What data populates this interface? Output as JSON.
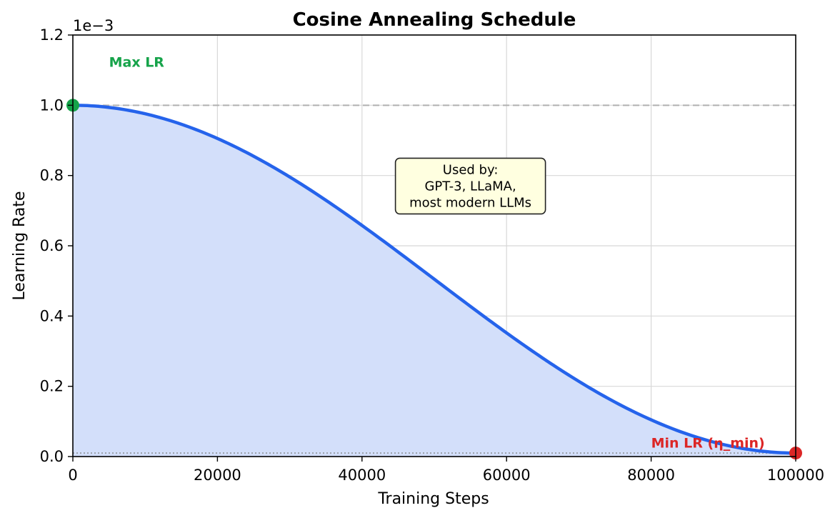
{
  "chart_data": {
    "type": "line",
    "title": "Cosine Annealing Schedule",
    "xlabel": "Training Steps",
    "ylabel": "Learning Rate",
    "y_offset_label": "1e−3",
    "xlim": [
      0,
      100000
    ],
    "ylim": [
      0,
      0.0012
    ],
    "x_ticks": [
      0,
      20000,
      40000,
      60000,
      80000,
      100000
    ],
    "x_tick_labels": [
      "0",
      "20000",
      "40000",
      "60000",
      "80000",
      "100000"
    ],
    "y_ticks": [
      0,
      0.0002,
      0.0004,
      0.0006,
      0.0008,
      0.001,
      0.0012
    ],
    "y_tick_labels": [
      "0.0",
      "0.2",
      "0.4",
      "0.6",
      "0.8",
      "1.0",
      "1.2"
    ],
    "grid": true,
    "series": [
      {
        "color": "#2563eb",
        "fill_color": "#d3dffa",
        "x": [
          0,
          5000,
          10000,
          15000,
          20000,
          25000,
          30000,
          35000,
          40000,
          45000,
          50000,
          55000,
          60000,
          65000,
          70000,
          75000,
          80000,
          85000,
          90000,
          95000,
          100000
        ],
        "y": [
          0.001,
          0.000994,
          0.000976,
          0.000946,
          0.000906,
          0.000856,
          0.000797,
          0.000731,
          0.000659,
          0.000583,
          0.000505,
          0.000427,
          0.000351,
          0.000279,
          0.000213,
          0.000154,
          0.000104,
          6.39e-05,
          3.42e-05,
          1.61e-05,
          1e-05
        ]
      }
    ],
    "reference_lines": [
      {
        "y": 0.001,
        "style": "dashed",
        "color": "#b0b0b0"
      },
      {
        "y": 1e-05,
        "style": "dotted",
        "color": "#9aa0a8"
      }
    ],
    "points": [
      {
        "x": 0,
        "y": 0.001,
        "color": "#16a34a"
      },
      {
        "x": 100000,
        "y": 1e-05,
        "color": "#dc2626"
      }
    ],
    "annotations": [
      {
        "text": "Max LR",
        "x": 5000,
        "y": 0.00111,
        "color": "#16a34a"
      },
      {
        "text": "Min LR (η_min)",
        "x": 80000,
        "y": 2.5e-05,
        "color": "#dc2626"
      }
    ],
    "note_box": {
      "lines": [
        "Used by:",
        "GPT-3, LLaMA,",
        "most modern LLMs"
      ],
      "x": 55000,
      "y": 0.00077,
      "bg": "#ffffe0"
    }
  }
}
